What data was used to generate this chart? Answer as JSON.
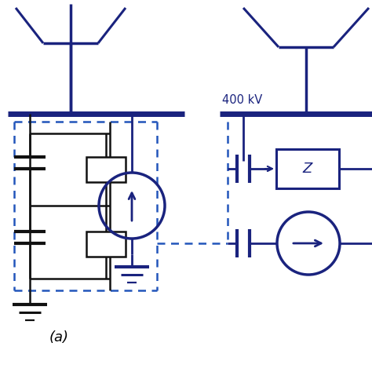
{
  "bg_color": "#ffffff",
  "line_color": "#1a237e",
  "dashed_color": "#2255bb",
  "black_color": "#111111",
  "label_400kv": "400 kV",
  "label_a": "(a)",
  "figsize": [
    4.74,
    4.74
  ],
  "dpi": 100
}
